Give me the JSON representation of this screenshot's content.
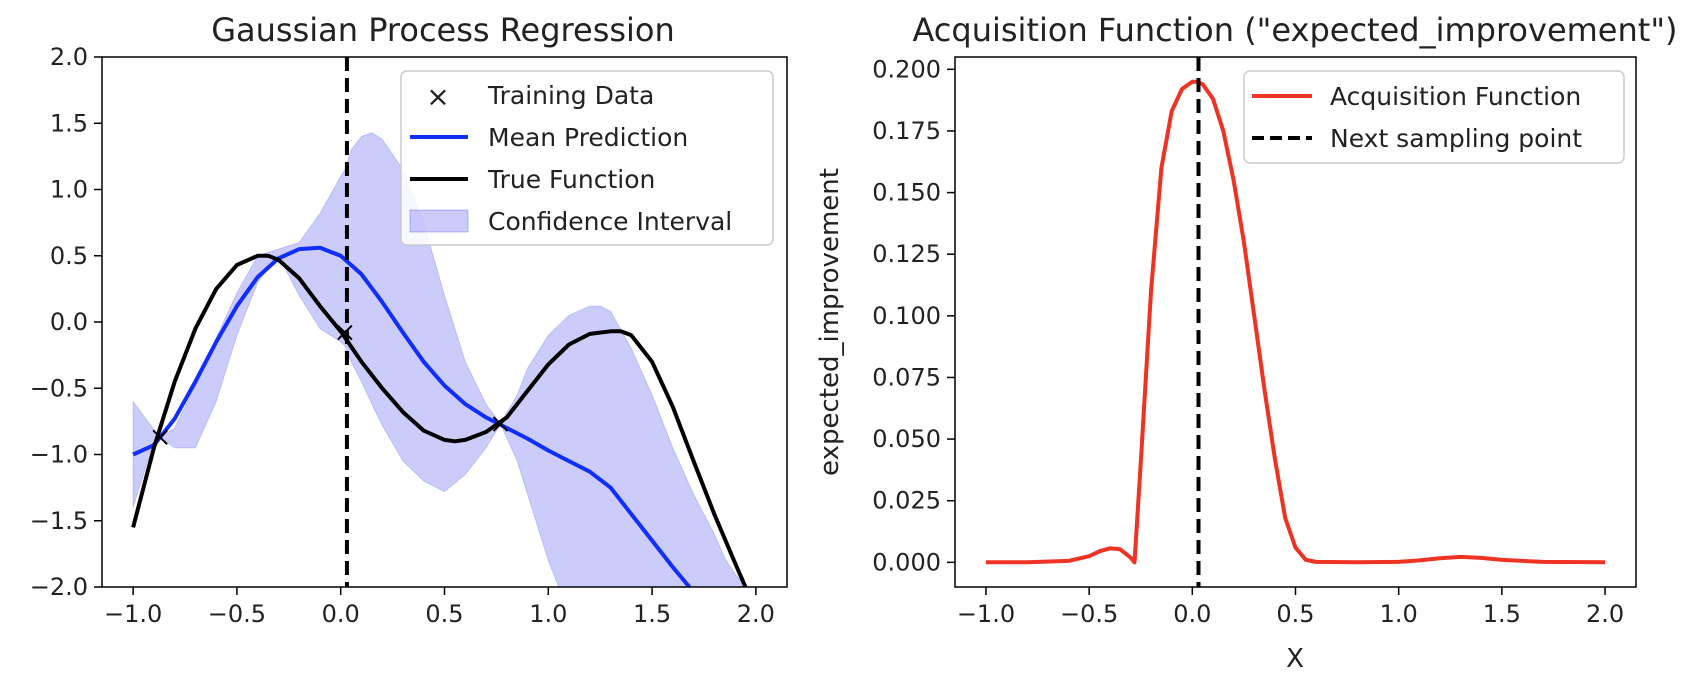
{
  "chart_data": [
    {
      "type": "line",
      "title": "Gaussian Process Regression",
      "xlabel": "",
      "ylabel": "",
      "xlim": [
        -1.15,
        2.15
      ],
      "ylim": [
        -2.0,
        2.0
      ],
      "xticks": [
        -1.0,
        -0.5,
        0.0,
        0.5,
        1.0,
        1.5,
        2.0
      ],
      "xtick_labels": [
        "−1.0",
        "−0.5",
        "0.0",
        "0.5",
        "1.0",
        "1.5",
        "2.0"
      ],
      "yticks": [
        -2.0,
        -1.5,
        -1.0,
        -0.5,
        0.0,
        0.5,
        1.0,
        1.5,
        2.0
      ],
      "ytick_labels": [
        "−2.0",
        "−1.5",
        "−1.0",
        "−0.5",
        "0.0",
        "0.5",
        "1.0",
        "1.5",
        "2.0"
      ],
      "grid": false,
      "legend_position": "top-right",
      "legend": [
        "Training Data",
        "Mean Prediction",
        "True Function",
        "Confidence Interval"
      ],
      "vline_x": 0.03,
      "training_data": [
        {
          "x": -0.87,
          "y": -0.87
        },
        {
          "x": 0.02,
          "y": -0.08
        },
        {
          "x": 0.77,
          "y": -0.77
        }
      ],
      "true_function": {
        "x": [
          -1.0,
          -0.9,
          -0.8,
          -0.7,
          -0.6,
          -0.5,
          -0.4,
          -0.35,
          -0.3,
          -0.2,
          -0.1,
          0.0,
          0.1,
          0.2,
          0.3,
          0.4,
          0.5,
          0.55,
          0.6,
          0.7,
          0.8,
          0.9,
          1.0,
          1.1,
          1.2,
          1.3,
          1.35,
          1.4,
          1.5,
          1.6,
          1.7,
          1.8,
          1.9,
          1.95
        ],
        "y": [
          -1.55,
          -0.95,
          -0.45,
          -0.05,
          0.25,
          0.43,
          0.5,
          0.5,
          0.47,
          0.33,
          0.12,
          -0.07,
          -0.3,
          -0.5,
          -0.68,
          -0.82,
          -0.89,
          -0.9,
          -0.89,
          -0.83,
          -0.72,
          -0.52,
          -0.32,
          -0.17,
          -0.09,
          -0.07,
          -0.07,
          -0.1,
          -0.3,
          -0.64,
          -1.05,
          -1.45,
          -1.82,
          -2.0
        ]
      },
      "mean_prediction": {
        "x": [
          -1.0,
          -0.9,
          -0.8,
          -0.7,
          -0.6,
          -0.5,
          -0.4,
          -0.3,
          -0.2,
          -0.1,
          0.0,
          0.1,
          0.2,
          0.3,
          0.4,
          0.5,
          0.6,
          0.7,
          0.8,
          0.9,
          1.0,
          1.1,
          1.2,
          1.3,
          1.4,
          1.5,
          1.6,
          1.68
        ],
        "y": [
          -1.0,
          -0.93,
          -0.73,
          -0.45,
          -0.15,
          0.12,
          0.34,
          0.48,
          0.55,
          0.56,
          0.5,
          0.36,
          0.15,
          -0.08,
          -0.3,
          -0.48,
          -0.62,
          -0.72,
          -0.8,
          -0.88,
          -0.97,
          -1.05,
          -1.13,
          -1.25,
          -1.45,
          -1.65,
          -1.85,
          -2.0
        ]
      },
      "confidence_interval": {
        "x": [
          -1.0,
          -0.93,
          -0.87,
          -0.8,
          -0.7,
          -0.6,
          -0.5,
          -0.4,
          -0.3,
          -0.2,
          -0.1,
          0.0,
          0.02,
          0.05,
          0.1,
          0.15,
          0.2,
          0.3,
          0.4,
          0.5,
          0.6,
          0.7,
          0.77,
          0.85,
          0.9,
          1.0,
          1.1,
          1.2,
          1.25,
          1.3,
          1.4,
          1.5,
          1.6,
          1.7,
          1.8,
          1.85,
          1.9,
          1.95
        ],
        "upper": [
          -0.6,
          -0.75,
          -0.87,
          -0.8,
          -0.48,
          -0.12,
          0.22,
          0.5,
          0.55,
          0.6,
          0.82,
          1.1,
          1.15,
          1.3,
          1.4,
          1.43,
          1.38,
          1.15,
          0.75,
          0.2,
          -0.3,
          -0.62,
          -0.77,
          -0.55,
          -0.35,
          -0.1,
          0.05,
          0.12,
          0.12,
          0.08,
          -0.2,
          -0.55,
          -0.95,
          -1.3,
          -1.6,
          -1.78,
          -1.9,
          -2.0
        ],
        "lower": [
          -1.4,
          -1.05,
          -0.87,
          -0.95,
          -0.95,
          -0.6,
          -0.1,
          0.3,
          0.5,
          0.2,
          -0.05,
          -0.15,
          -0.18,
          -0.3,
          -0.45,
          -0.62,
          -0.78,
          -1.05,
          -1.2,
          -1.28,
          -1.15,
          -0.95,
          -0.77,
          -1.05,
          -1.3,
          -1.8,
          -2.2,
          -2.5,
          -2.6,
          -2.65,
          -2.6,
          -2.5,
          -2.35,
          -2.2,
          -2.1,
          -2.05,
          -2.02,
          -2.0
        ]
      },
      "colors": {
        "mean": "#0f2eff",
        "true": "#000000",
        "ci_fill": "#3333ee",
        "vline": "#000000",
        "marker": "#000000"
      }
    },
    {
      "type": "line",
      "title": "Acquisition Function (\"expected_improvement\")",
      "xlabel": "X",
      "ylabel": "expected_improvement",
      "xlim": [
        -1.15,
        2.15
      ],
      "ylim": [
        -0.01,
        0.205
      ],
      "xticks": [
        -1.0,
        -0.5,
        0.0,
        0.5,
        1.0,
        1.5,
        2.0
      ],
      "xtick_labels": [
        "−1.0",
        "−0.5",
        "0.0",
        "0.5",
        "1.0",
        "1.5",
        "2.0"
      ],
      "yticks": [
        0.0,
        0.025,
        0.05,
        0.075,
        0.1,
        0.125,
        0.15,
        0.175,
        0.2
      ],
      "ytick_labels": [
        "0.000",
        "0.025",
        "0.050",
        "0.075",
        "0.100",
        "0.125",
        "0.150",
        "0.175",
        "0.200"
      ],
      "grid": false,
      "legend_position": "top-right",
      "legend": [
        "Acquisition Function",
        "Next sampling point"
      ],
      "vline_x": 0.03,
      "series": [
        {
          "name": "Acquisition Function",
          "x": [
            -1.0,
            -0.8,
            -0.6,
            -0.5,
            -0.45,
            -0.4,
            -0.35,
            -0.3,
            -0.28,
            -0.25,
            -0.2,
            -0.15,
            -0.1,
            -0.05,
            0.0,
            0.02,
            0.05,
            0.1,
            0.15,
            0.2,
            0.25,
            0.3,
            0.35,
            0.4,
            0.45,
            0.5,
            0.55,
            0.6,
            0.8,
            1.0,
            1.1,
            1.2,
            1.3,
            1.4,
            1.5,
            1.7,
            2.0
          ],
          "y": [
            0.0,
            0.0,
            0.0006,
            0.0025,
            0.0045,
            0.0057,
            0.0053,
            0.002,
            0.0,
            0.04,
            0.11,
            0.16,
            0.183,
            0.192,
            0.195,
            0.195,
            0.194,
            0.188,
            0.175,
            0.155,
            0.13,
            0.1,
            0.07,
            0.042,
            0.018,
            0.006,
            0.001,
            0.0002,
            0.0,
            0.0002,
            0.0008,
            0.0017,
            0.0022,
            0.0018,
            0.001,
            0.0002,
            0.0
          ]
        }
      ],
      "colors": {
        "acq": "#ee3322",
        "vline": "#000000"
      }
    }
  ]
}
